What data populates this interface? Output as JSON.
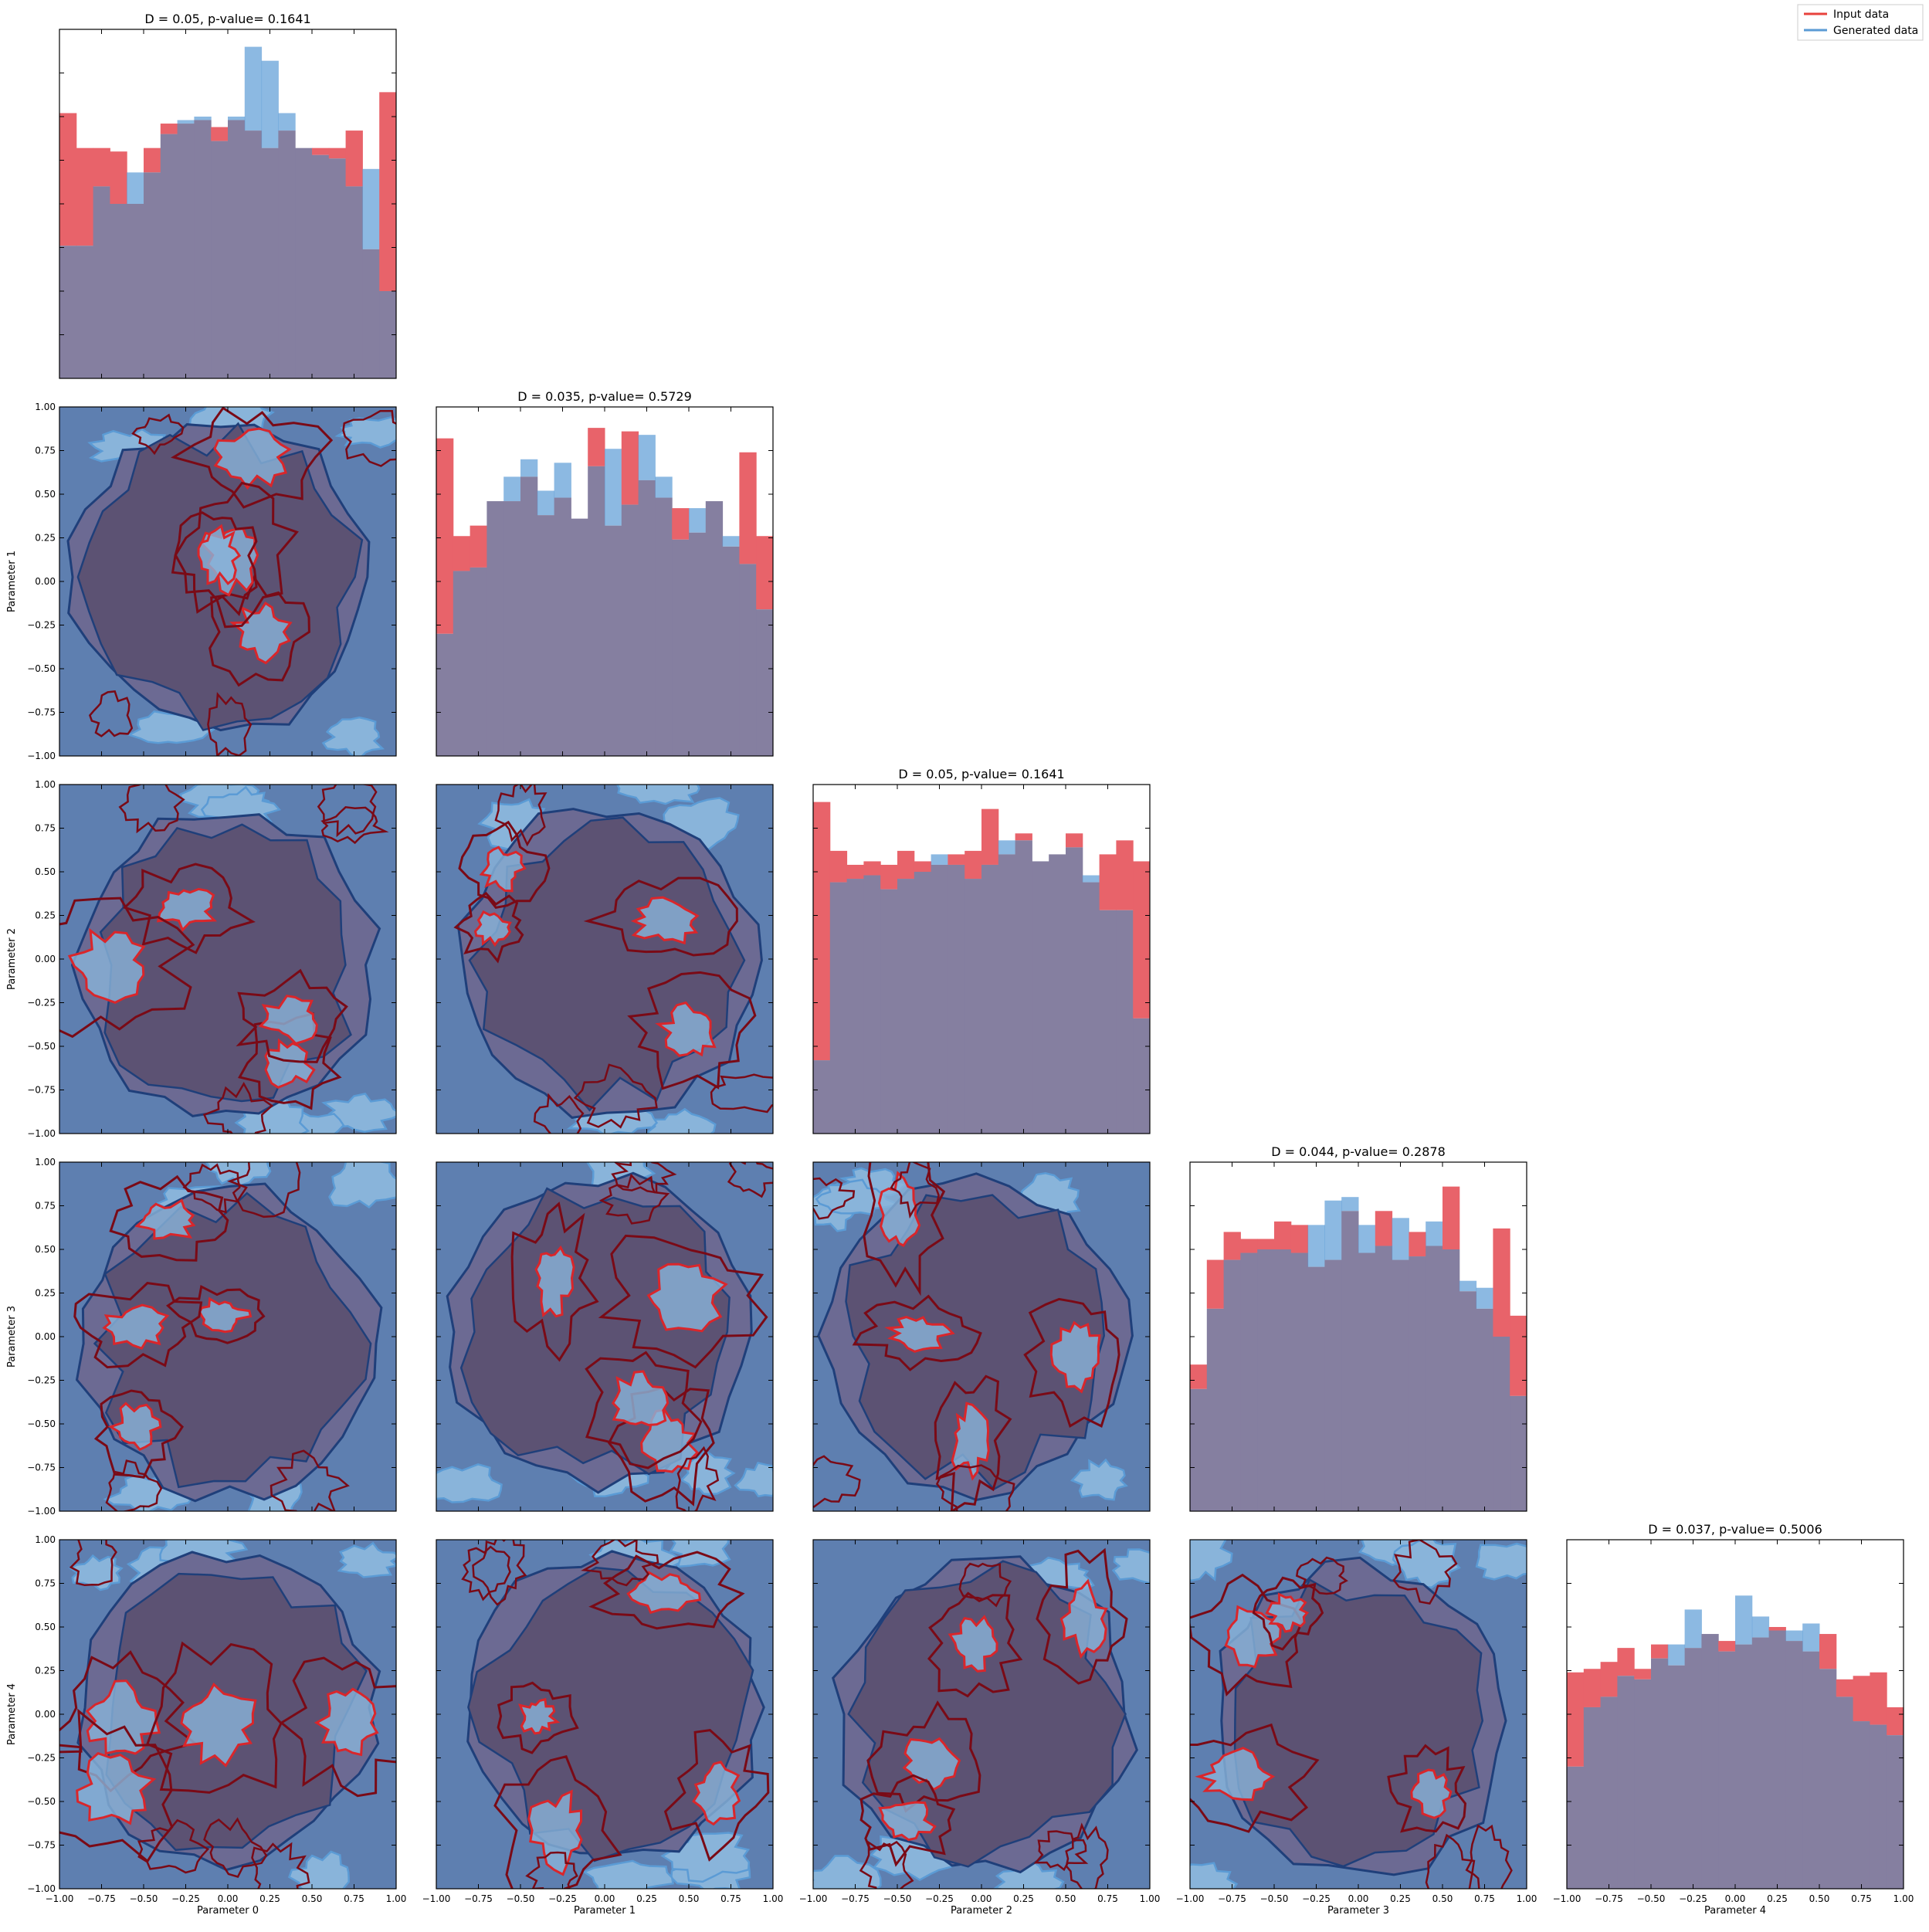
{
  "colors": {
    "input": "#E8636A",
    "generated": "#5B9BD5",
    "input_line": "#E8423C",
    "generated_line": "#5B9BD5",
    "overlap": "#857FA0",
    "contour_dark_red": "#7A0A16",
    "contour_red": "#D9262B",
    "kde_navy": "#1F3F7A",
    "fill_dark": "#5C5273",
    "fill_mid": "#6C6A93",
    "fill_blue": "#5E7FB0",
    "fill_light_blue": "#89B4DA"
  },
  "legend": {
    "placement": "top-right",
    "items": [
      {
        "label": "Input data",
        "color": "#E8423C"
      },
      {
        "label": "Generated data",
        "color": "#5B9BD5"
      }
    ]
  },
  "axis_labels": [
    "Parameter 0",
    "Parameter 1",
    "Parameter 2",
    "Parameter 3",
    "Parameter 4"
  ],
  "tick_labels": [
    "−1.00",
    "−0.75",
    "−0.50",
    "−0.25",
    "0.00",
    "0.25",
    "0.50",
    "0.75",
    "1.00"
  ],
  "chart_data": {
    "type": "corner",
    "n_params": 5,
    "range": [
      -1.0,
      1.0
    ],
    "grid": false,
    "diagonal": [
      {
        "title": "D = 0.05, p-value= 0.1641",
        "bins": 20,
        "input": [
          0.76,
          0.66,
          0.66,
          0.65,
          0.5,
          0.66,
          0.73,
          0.73,
          0.74,
          0.72,
          0.74,
          0.71,
          0.66,
          0.71,
          0.66,
          0.66,
          0.66,
          0.71,
          0.37,
          0.82
        ],
        "generated": [
          0.38,
          0.38,
          0.55,
          0.5,
          0.59,
          0.59,
          0.7,
          0.74,
          0.75,
          0.68,
          0.75,
          0.95,
          0.91,
          0.76,
          0.66,
          0.64,
          0.63,
          0.55,
          0.6,
          0.25
        ]
      },
      {
        "title": "D = 0.035, p-value= 0.5729",
        "bins": 20,
        "input": [
          0.91,
          0.63,
          0.66,
          0.73,
          0.73,
          0.8,
          0.69,
          0.74,
          0.68,
          0.94,
          0.66,
          0.93,
          0.79,
          0.74,
          0.71,
          0.64,
          0.73,
          0.6,
          0.87,
          0.63
        ],
        "generated": [
          0.35,
          0.53,
          0.54,
          0.73,
          0.8,
          0.85,
          0.76,
          0.84,
          0.68,
          0.83,
          0.88,
          0.72,
          0.92,
          0.8,
          0.62,
          0.71,
          0.73,
          0.63,
          0.55,
          0.42
        ]
      },
      {
        "title": "D = 0.05, p-value= 0.1641",
        "bins": 20,
        "input": [
          0.95,
          0.81,
          0.77,
          0.78,
          0.77,
          0.81,
          0.78,
          0.77,
          0.8,
          0.81,
          0.93,
          0.8,
          0.86,
          0.78,
          0.8,
          0.86,
          0.72,
          0.8,
          0.84,
          0.78
        ],
        "generated": [
          0.21,
          0.72,
          0.73,
          0.74,
          0.7,
          0.73,
          0.75,
          0.8,
          0.77,
          0.73,
          0.77,
          0.84,
          0.84,
          0.78,
          0.8,
          0.82,
          0.74,
          0.64,
          0.64,
          0.33
        ]
      },
      {
        "title": "D = 0.044, p-value= 0.2878",
        "bins": 20,
        "input": [
          0.42,
          0.72,
          0.8,
          0.78,
          0.78,
          0.83,
          0.82,
          0.7,
          0.72,
          0.86,
          0.74,
          0.86,
          0.72,
          0.8,
          0.76,
          0.93,
          0.63,
          0.58,
          0.81,
          0.56
        ],
        "generated": [
          0.35,
          0.58,
          0.72,
          0.74,
          0.75,
          0.75,
          0.74,
          0.82,
          0.89,
          0.9,
          0.82,
          0.76,
          0.84,
          0.73,
          0.83,
          0.75,
          0.66,
          0.64,
          0.5,
          0.33
        ]
      },
      {
        "title": "D = 0.037, p-value= 0.5006",
        "bins": 20,
        "input": [
          0.62,
          0.63,
          0.65,
          0.69,
          0.63,
          0.7,
          0.64,
          0.69,
          0.73,
          0.71,
          0.7,
          0.72,
          0.75,
          0.71,
          0.68,
          0.73,
          0.6,
          0.61,
          0.62,
          0.52
        ],
        "generated": [
          0.35,
          0.52,
          0.55,
          0.61,
          0.6,
          0.66,
          0.7,
          0.8,
          0.73,
          0.68,
          0.84,
          0.78,
          0.74,
          0.74,
          0.76,
          0.63,
          0.55,
          0.48,
          0.47,
          0.44
        ]
      }
    ],
    "off_diagonal": {
      "kind": "overlaid kernel density contours (filled generated, outlined + filled input)",
      "levels": 4
    }
  }
}
